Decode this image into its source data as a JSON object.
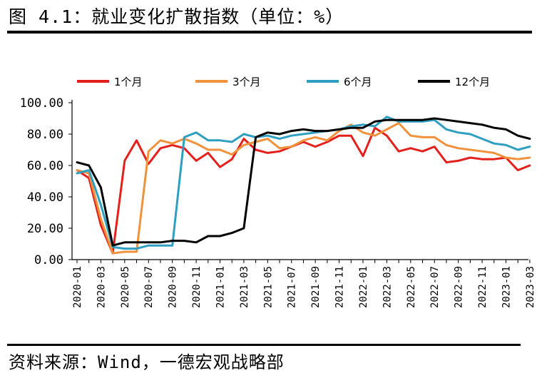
{
  "header": {
    "title": "图 4.1：就业变化扩散指数（单位：%）"
  },
  "footer": {
    "source": "资料来源：Wind，一德宏观战略部"
  },
  "chart_data": {
    "type": "line",
    "title": "图 4.1：就业变化扩散指数（单位：%）",
    "xlabel": "",
    "ylabel": "",
    "ylim": [
      0,
      100
    ],
    "yticks": [
      "0.00",
      "20.00",
      "40.00",
      "60.00",
      "80.00",
      "100.00"
    ],
    "ytick_values": [
      0,
      20,
      40,
      60,
      80,
      100
    ],
    "legend_position": "top",
    "x": [
      "2020-01",
      "2020-02",
      "2020-03",
      "2020-04",
      "2020-05",
      "2020-06",
      "2020-07",
      "2020-08",
      "2020-09",
      "2020-10",
      "2020-11",
      "2020-12",
      "2021-01",
      "2021-02",
      "2021-03",
      "2021-04",
      "2021-05",
      "2021-06",
      "2021-07",
      "2021-08",
      "2021-09",
      "2021-10",
      "2021-11",
      "2021-12",
      "2022-01",
      "2022-02",
      "2022-03",
      "2022-04",
      "2022-05",
      "2022-06",
      "2022-07",
      "2022-08",
      "2022-09",
      "2022-10",
      "2022-11",
      "2022-12",
      "2023-01",
      "2023-02",
      "2023-03"
    ],
    "xticks": [
      "2020-01",
      "2020-03",
      "2020-05",
      "2020-07",
      "2020-09",
      "2020-11",
      "2021-01",
      "2021-03",
      "2021-05",
      "2021-07",
      "2021-09",
      "2021-11",
      "2022-01",
      "2022-03",
      "2022-05",
      "2022-07",
      "2022-09",
      "2022-11",
      "2023-01",
      "2023-03"
    ],
    "series": [
      {
        "name": "1个月",
        "color": "#e3201b",
        "values": [
          57,
          52,
          22,
          4,
          63,
          76,
          61,
          71,
          73,
          71,
          63,
          68,
          59,
          64,
          77,
          70,
          68,
          69,
          72,
          75,
          72,
          75,
          79,
          79,
          66,
          84,
          79,
          69,
          71,
          69,
          72,
          62,
          63,
          65,
          64,
          64,
          65,
          57,
          60
        ]
      },
      {
        "name": "3个月",
        "color": "#f0913c",
        "values": [
          57,
          55,
          26,
          4,
          5,
          5,
          69,
          76,
          74,
          77,
          74,
          70,
          70,
          67,
          73,
          75,
          77,
          71,
          72,
          76,
          78,
          76,
          82,
          86,
          81,
          79,
          83,
          87,
          79,
          78,
          78,
          73,
          71,
          70,
          69,
          68,
          65,
          64,
          65
        ]
      },
      {
        "name": "6个月",
        "color": "#2f9fc1",
        "values": [
          55,
          57,
          35,
          8,
          7,
          7,
          9,
          9,
          9,
          78,
          81,
          76,
          76,
          75,
          80,
          78,
          79,
          77,
          79,
          80,
          81,
          82,
          83,
          85,
          86,
          85,
          91,
          88,
          88,
          88,
          89,
          83,
          81,
          80,
          77,
          74,
          73,
          70,
          72
        ]
      },
      {
        "name": "12个月",
        "color": "#000000",
        "values": [
          62,
          60,
          46,
          9,
          11,
          11,
          11,
          11,
          12,
          12,
          11,
          15,
          15,
          17,
          20,
          78,
          81,
          80,
          82,
          83,
          82,
          82,
          83,
          84,
          84,
          88,
          89,
          89,
          89,
          89,
          90,
          89,
          88,
          87,
          86,
          84,
          83,
          79,
          77
        ]
      }
    ]
  }
}
